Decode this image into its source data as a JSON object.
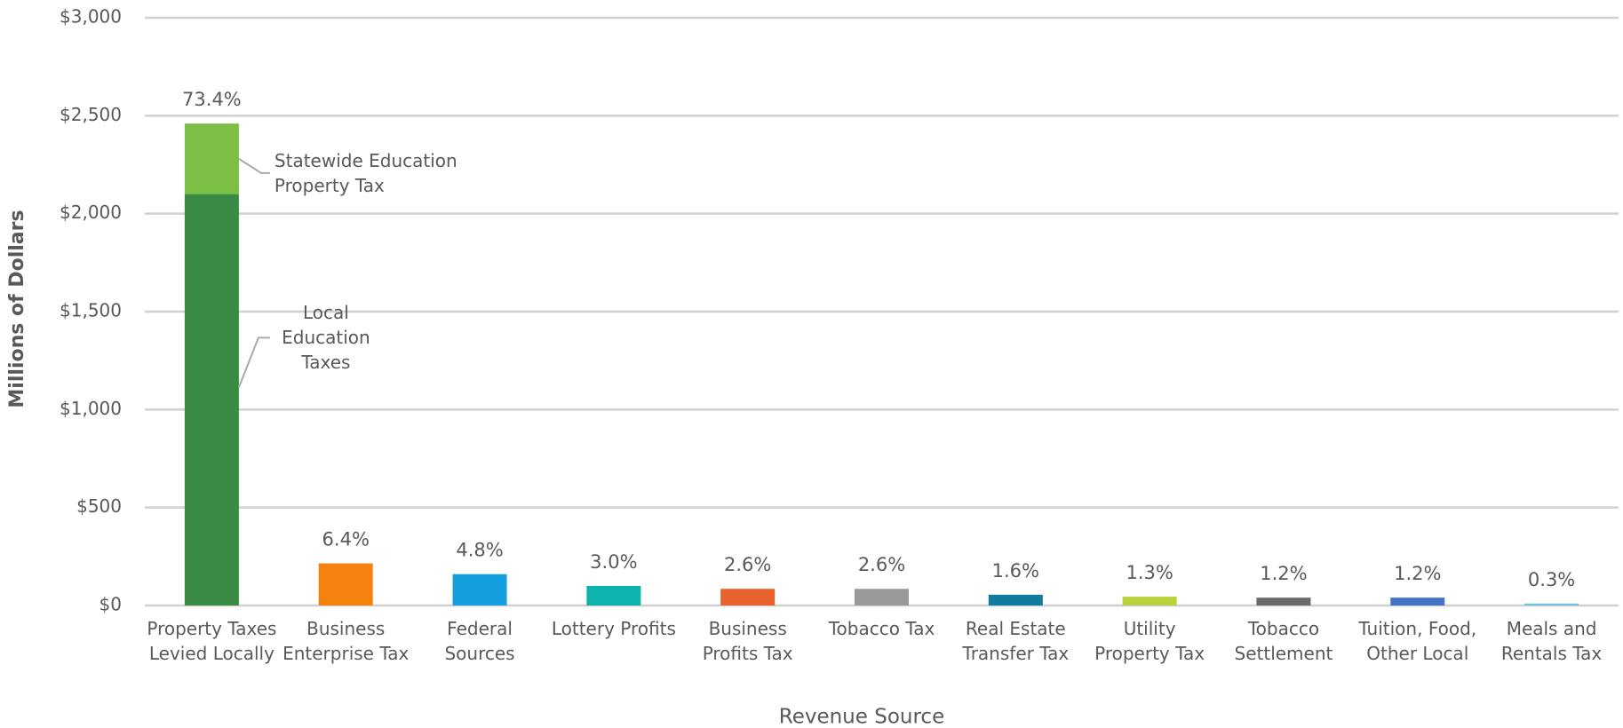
{
  "chart_data": {
    "type": "stacked_bar",
    "categories": [
      "Property Taxes Levied Locally",
      "Business Enterprise Tax",
      "Federal Sources",
      "Lottery Profits",
      "Business Profits Tax",
      "Tobacco Tax",
      "Real Estate Transfer Tax",
      "Utility Property Tax",
      "Tobacco Settlement",
      "Tuition, Food, Other Local",
      "Meals and Rentals Tax"
    ],
    "series": [
      {
        "name": "Local Education Taxes",
        "values": [
          2100,
          215,
          160,
          100,
          85,
          85,
          55,
          45,
          40,
          40,
          10
        ],
        "colors": [
          "#3a8c44",
          "#f5820f",
          "#14a0df",
          "#0db3ac",
          "#e8602c",
          "#999999",
          "#127a9c",
          "#b9d13b",
          "#6a6a6a",
          "#4472c4",
          "#6fc1dc"
        ]
      },
      {
        "name": "Statewide Education Property Tax",
        "values": [
          360,
          null,
          null,
          null,
          null,
          null,
          null,
          null,
          null,
          null,
          null
        ],
        "color": "#7bbf44"
      }
    ],
    "percent_labels": [
      "73.4%",
      "6.4%",
      "4.8%",
      "3.0%",
      "2.6%",
      "2.6%",
      "1.6%",
      "1.3%",
      "1.2%",
      "1.2%",
      "0.3%"
    ],
    "x_label": "Revenue Source",
    "y_label": "Millions of Dollars",
    "ylim": [
      0,
      3000
    ],
    "yticks": [
      {
        "value": 0,
        "label": "$0"
      },
      {
        "value": 500,
        "label": "$500"
      },
      {
        "value": 1000,
        "label": "$1,000"
      },
      {
        "value": 1500,
        "label": "$1,500"
      },
      {
        "value": 2000,
        "label": "$2,000"
      },
      {
        "value": 2500,
        "label": "$2,500"
      },
      {
        "value": 3000,
        "label": "$3,000"
      }
    ],
    "grid": true
  }
}
